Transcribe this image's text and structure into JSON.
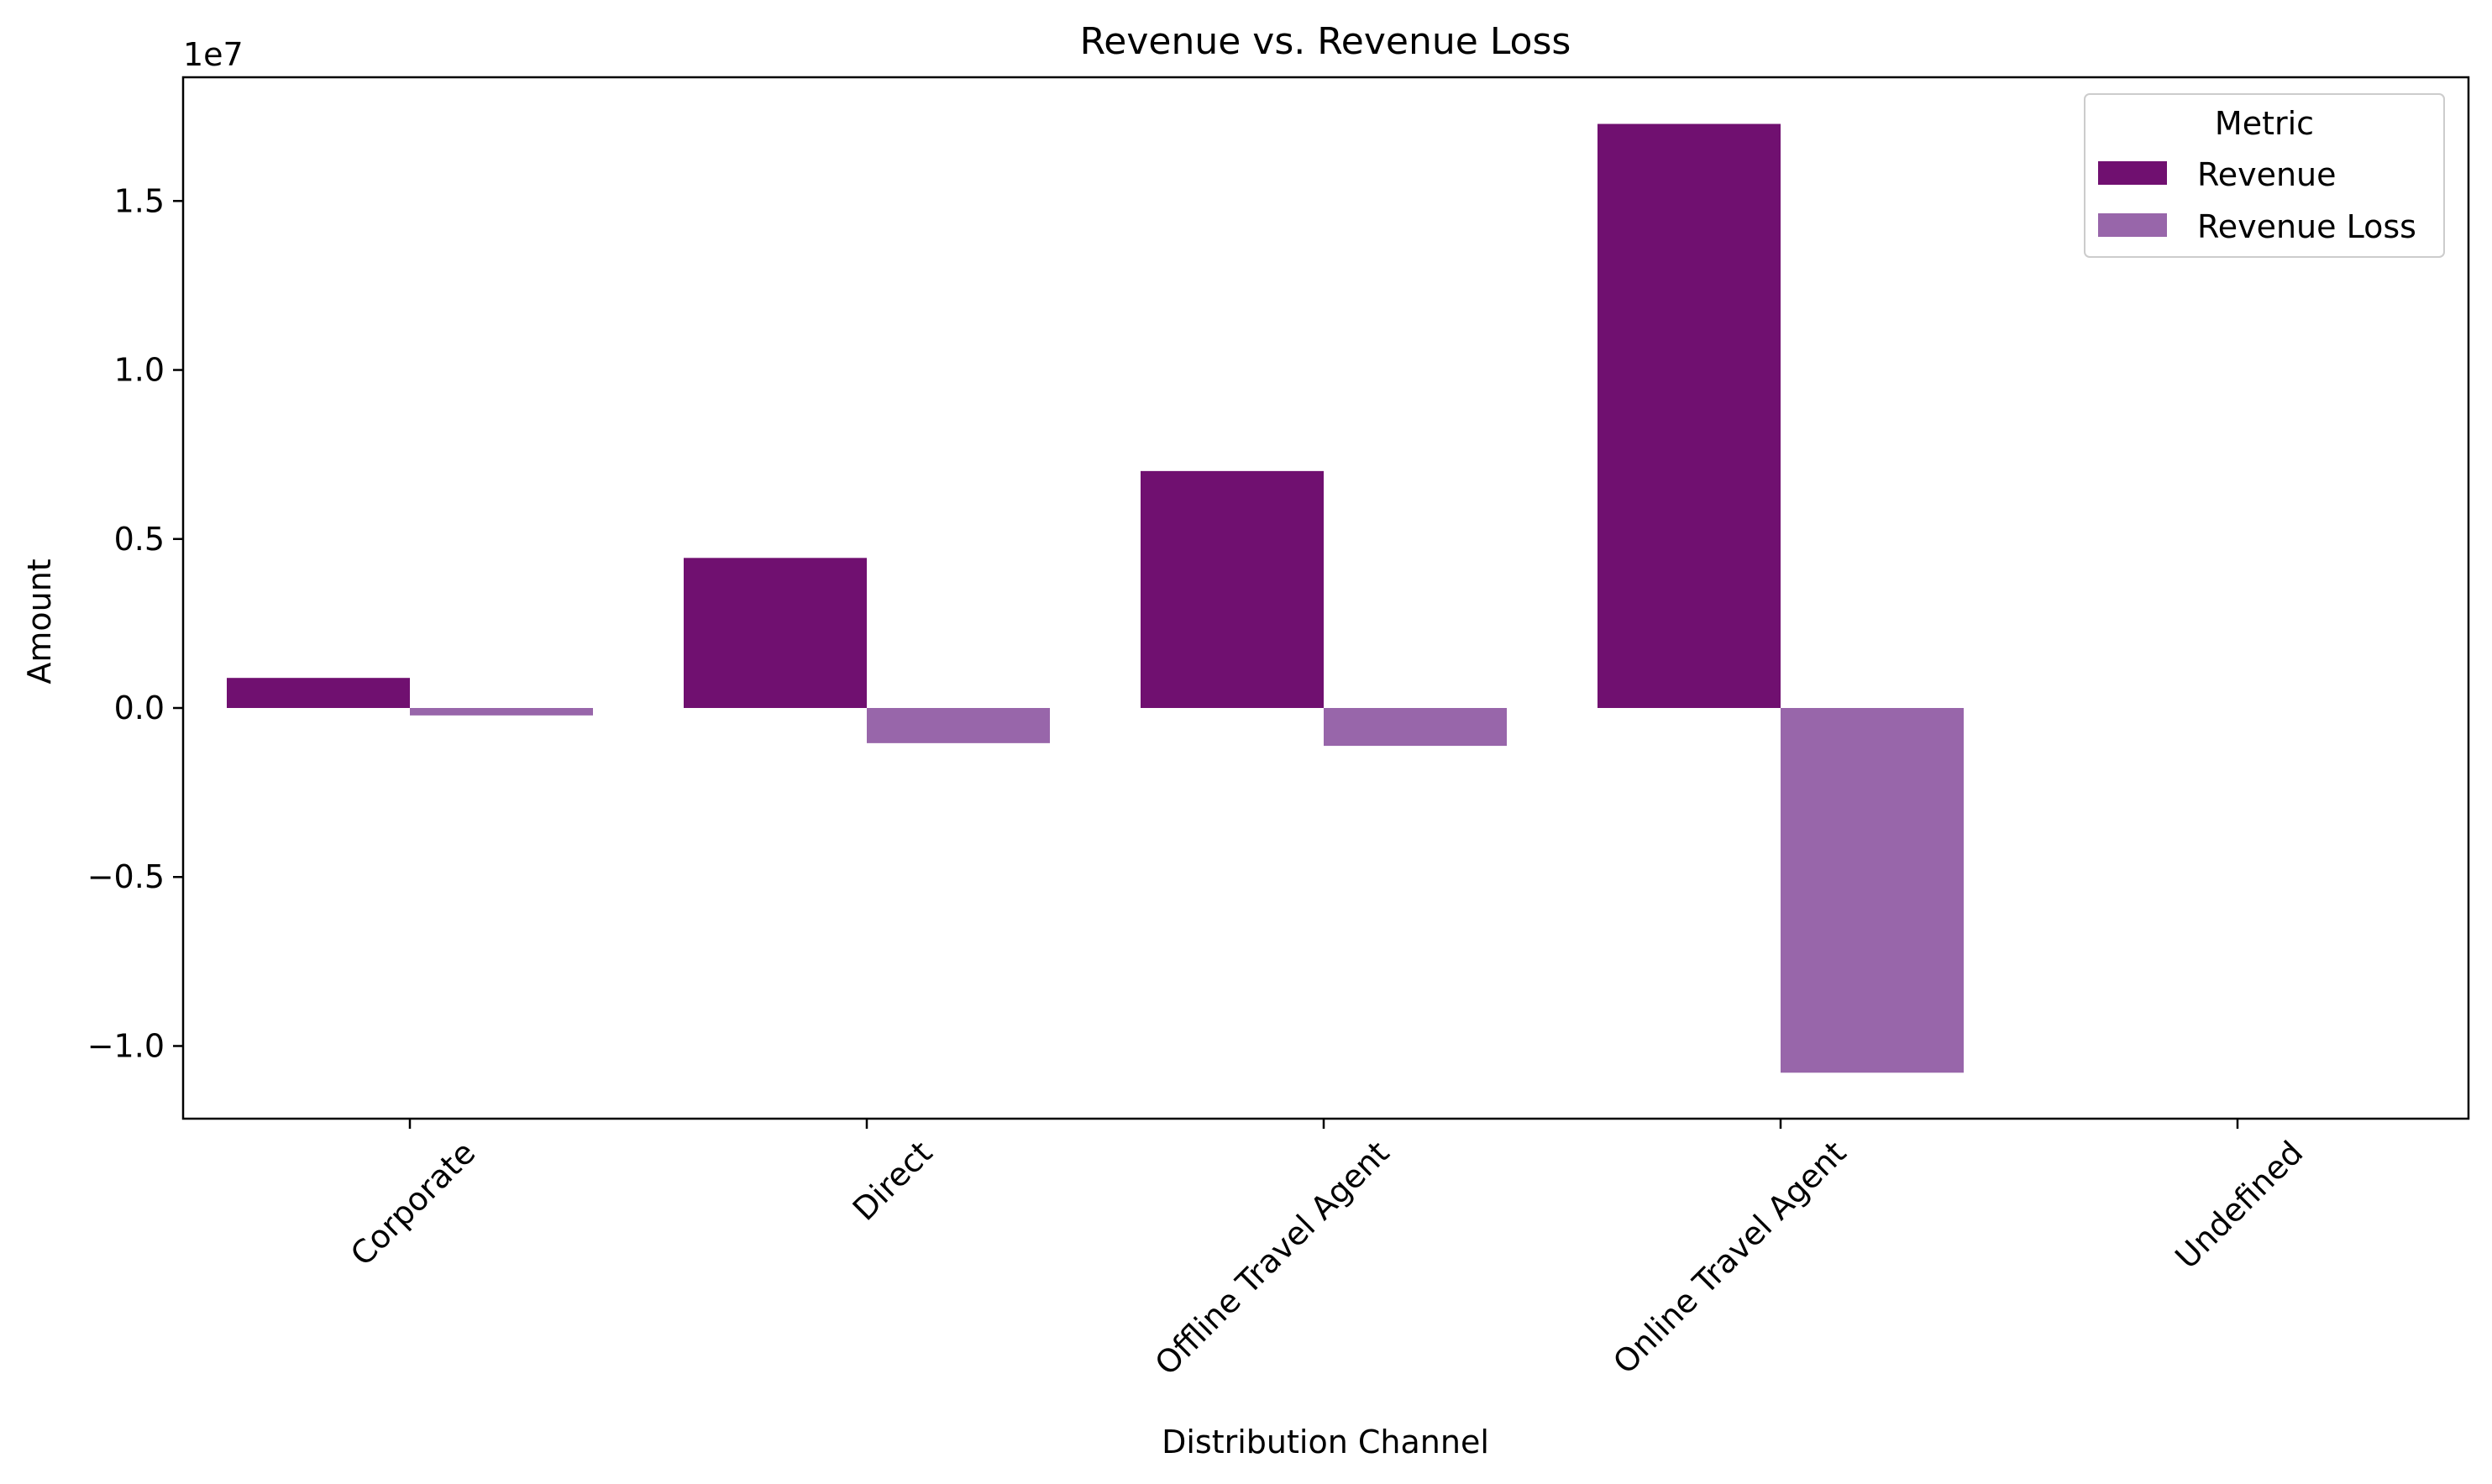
{
  "chart_data": {
    "type": "bar",
    "title": "Revenue vs. Revenue Loss",
    "xlabel": "Distribution Channel",
    "ylabel": "Amount",
    "y_offset_label": "1e7",
    "categories": [
      "Corporate",
      "Direct",
      "Offline Travel Agent",
      "Online Travel Agent",
      "Undefined"
    ],
    "series": [
      {
        "name": "Revenue",
        "color": "#701070",
        "values": [
          890000,
          4440000,
          7010000,
          17280000,
          0
        ]
      },
      {
        "name": "Revenue Loss",
        "color": "#9866aa",
        "values": [
          -220000,
          -1040000,
          -1120000,
          -10790000,
          0
        ]
      }
    ],
    "yticks": [
      -10000000.0,
      -5000000.0,
      0.0,
      5000000.0,
      10000000.0,
      15000000.0
    ],
    "ytick_labels": [
      "−1.0",
      "−0.5",
      "0.0",
      "0.5",
      "1.0",
      "1.5"
    ],
    "ylim": [
      -12150000,
      18660000
    ],
    "grid": false,
    "legend": {
      "title": "Metric",
      "placement": "top-right"
    }
  }
}
